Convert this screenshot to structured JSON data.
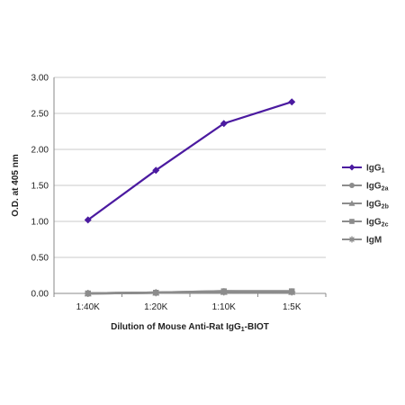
{
  "chart_data": {
    "type": "line",
    "categories": [
      "1:40K",
      "1:20K",
      "1:10K",
      "1:5K"
    ],
    "xlabel": "Dilution of Mouse Anti-Rat IgG1-BIOT",
    "xlabel_main": "Dilution of Mouse Anti-Rat IgG",
    "xlabel_sub": "1",
    "xlabel_tail": "-BIOT",
    "ylabel": "O.D. at 405 nm",
    "ylim": [
      0,
      3
    ],
    "yticks": [
      "0.00",
      "0.50",
      "1.00",
      "1.50",
      "2.00",
      "2.50",
      "3.00"
    ],
    "ytick_values": [
      0,
      0.5,
      1,
      1.5,
      2,
      2.5,
      3
    ],
    "grid": true,
    "legend_position": "right",
    "series": [
      {
        "name": "IgG1",
        "label_main": "IgG",
        "label_sub": "1",
        "values": [
          1.02,
          1.71,
          2.36,
          2.66
        ],
        "color": "#4b1aa0",
        "marker": "diamond"
      },
      {
        "name": "IgG2a",
        "label_main": "IgG",
        "label_sub": "2a",
        "values": [
          0.0,
          0.01,
          0.03,
          0.02
        ],
        "color": "#8c8c8c",
        "marker": "circle"
      },
      {
        "name": "IgG2b",
        "label_main": "IgG",
        "label_sub": "2b",
        "values": [
          0.0,
          0.01,
          0.02,
          0.02
        ],
        "color": "#8c8c8c",
        "marker": "triangle"
      },
      {
        "name": "IgG2c",
        "label_main": "IgG",
        "label_sub": "2c",
        "values": [
          0.0,
          0.01,
          0.03,
          0.03
        ],
        "color": "#8c8c8c",
        "marker": "square"
      },
      {
        "name": "IgM",
        "label_main": "IgM",
        "label_sub": "",
        "values": [
          0.0,
          0.01,
          0.02,
          0.02
        ],
        "color": "#8c8c8c",
        "marker": "star"
      }
    ]
  }
}
